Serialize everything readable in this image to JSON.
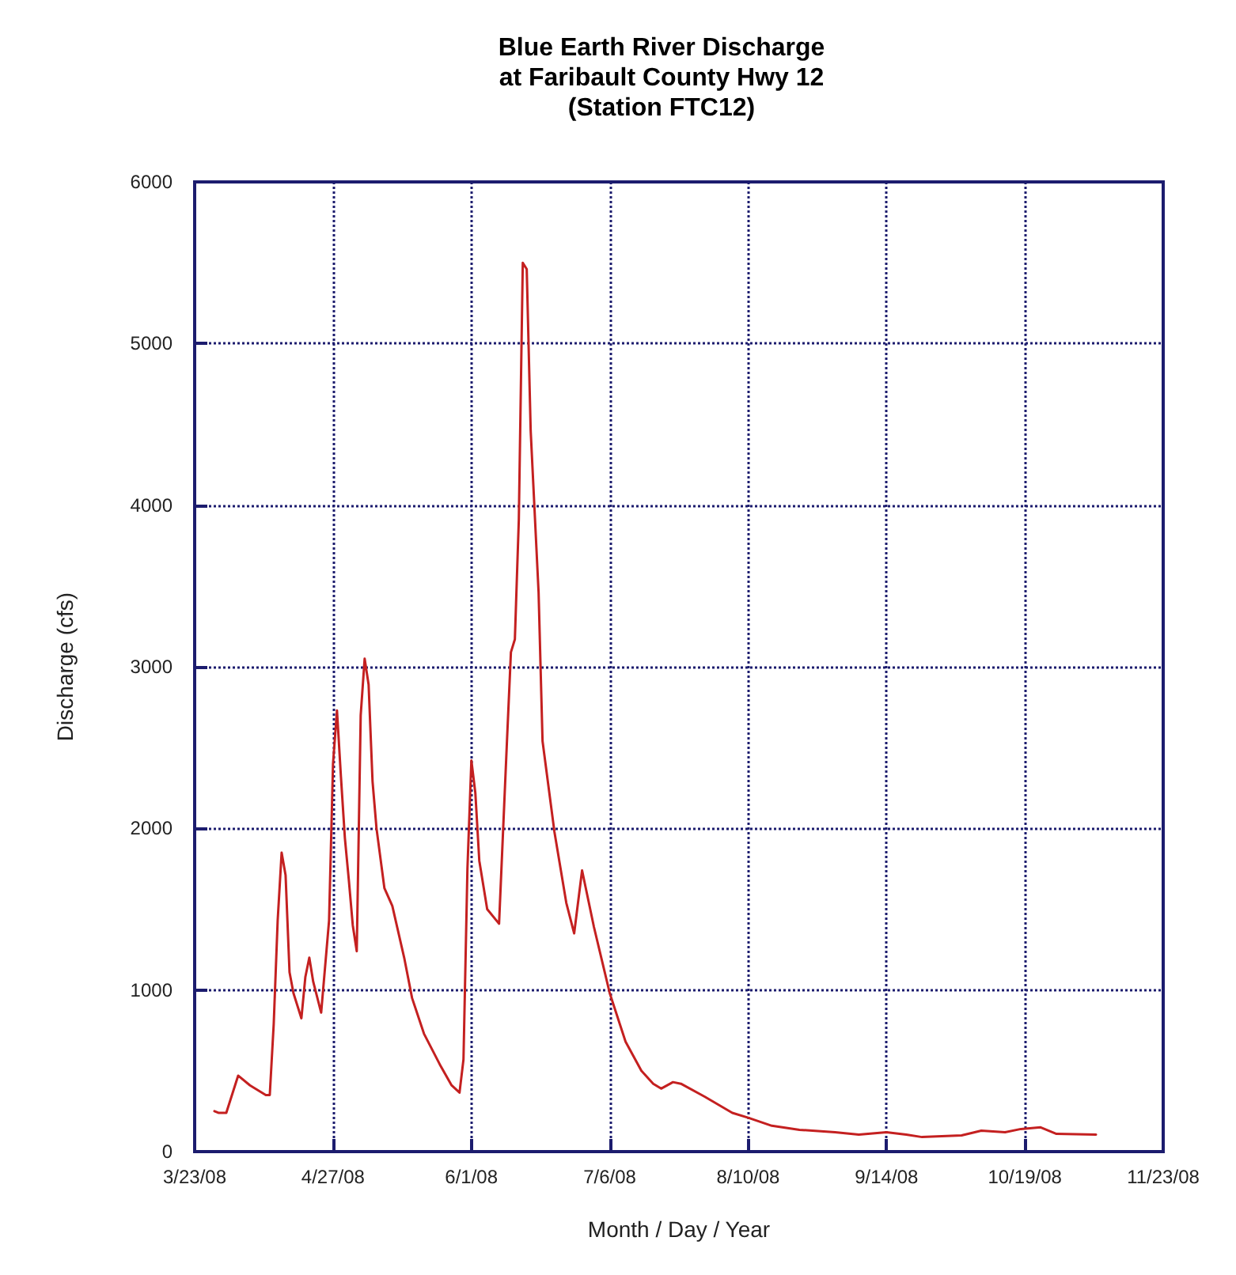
{
  "chart_data": {
    "type": "line",
    "title": "Blue Earth River Discharge\nat Faribault County Hwy 12\n(Station FTC12)",
    "xlabel": "Month / Day / Year",
    "ylabel": "Discharge (cfs)",
    "x": [
      "2008-03-28",
      "2008-03-29",
      "2008-03-31",
      "2008-04-03",
      "2008-04-06",
      "2008-04-10",
      "2008-04-11",
      "2008-04-12",
      "2008-04-13",
      "2008-04-14",
      "2008-04-15",
      "2008-04-16",
      "2008-04-17",
      "2008-04-19",
      "2008-04-20",
      "2008-04-21",
      "2008-04-22",
      "2008-04-24",
      "2008-04-26",
      "2008-04-27",
      "2008-04-28",
      "2008-04-29",
      "2008-04-30",
      "2008-05-01",
      "2008-05-02",
      "2008-05-03",
      "2008-05-04",
      "2008-05-05",
      "2008-05-06",
      "2008-05-07",
      "2008-05-08",
      "2008-05-10",
      "2008-05-12",
      "2008-05-15",
      "2008-05-17",
      "2008-05-20",
      "2008-05-24",
      "2008-05-27",
      "2008-05-29",
      "2008-05-30",
      "2008-05-31",
      "2008-06-01",
      "2008-06-02",
      "2008-06-03",
      "2008-06-05",
      "2008-06-08",
      "2008-06-10",
      "2008-06-11",
      "2008-06-12",
      "2008-06-13",
      "2008-06-14",
      "2008-06-15",
      "2008-06-16",
      "2008-06-18",
      "2008-06-19",
      "2008-06-22",
      "2008-06-25",
      "2008-06-27",
      "2008-06-29",
      "2008-07-02",
      "2008-07-06",
      "2008-07-10",
      "2008-07-14",
      "2008-07-17",
      "2008-07-19",
      "2008-07-22",
      "2008-07-24",
      "2008-07-30",
      "2008-08-06",
      "2008-08-10",
      "2008-08-16",
      "2008-08-23",
      "2008-09-01",
      "2008-09-07",
      "2008-09-14",
      "2008-09-19",
      "2008-09-23",
      "2008-10-03",
      "2008-10-08",
      "2008-10-14",
      "2008-10-18",
      "2008-10-23",
      "2008-10-27",
      "2008-11-06"
    ],
    "series": [
      {
        "color": "#c42020",
        "values": [
          250,
          240,
          240,
          470,
          410,
          350,
          350,
          790,
          1430,
          1850,
          1710,
          1110,
          980,
          825,
          1080,
          1200,
          1050,
          860,
          1430,
          2400,
          2730,
          2320,
          1940,
          1680,
          1400,
          1240,
          2700,
          3050,
          2890,
          2290,
          2000,
          1630,
          1520,
          1200,
          950,
          730,
          540,
          410,
          365,
          570,
          1750,
          2420,
          2220,
          1800,
          1500,
          1410,
          2540,
          3090,
          3170,
          3910,
          5500,
          5460,
          4460,
          3460,
          2540,
          1980,
          1540,
          1350,
          1740,
          1390,
          980,
          680,
          500,
          420,
          390,
          430,
          420,
          340,
          240,
          210,
          160,
          135,
          120,
          105,
          120,
          105,
          90,
          100,
          130,
          120,
          140,
          150,
          110,
          105
        ]
      }
    ],
    "xlim": [
      "2008-03-23",
      "2008-11-23"
    ],
    "xticks": [
      {
        "value": "2008-03-23",
        "label": "3/23/08"
      },
      {
        "value": "2008-04-27",
        "label": "4/27/08"
      },
      {
        "value": "2008-06-01",
        "label": "6/1/08"
      },
      {
        "value": "2008-07-06",
        "label": "7/6/08"
      },
      {
        "value": "2008-08-10",
        "label": "8/10/08"
      },
      {
        "value": "2008-09-14",
        "label": "9/14/08"
      },
      {
        "value": "2008-10-19",
        "label": "10/19/08"
      },
      {
        "value": "2008-11-23",
        "label": "11/23/08"
      }
    ],
    "ylim": [
      0,
      6000
    ],
    "yticks": [
      0,
      1000,
      2000,
      3000,
      4000,
      5000,
      6000
    ],
    "grid": true,
    "marker": "none",
    "line_style": "solid"
  }
}
